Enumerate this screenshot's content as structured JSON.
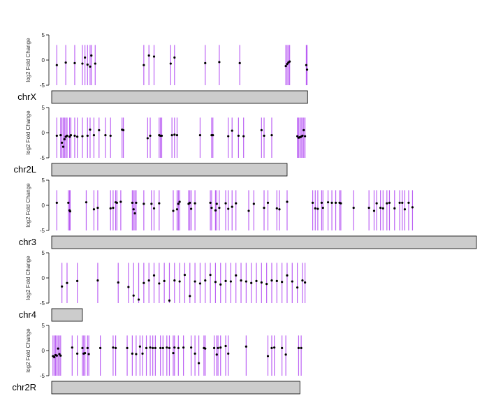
{
  "chart_data": {
    "type": "scatter",
    "ylabel": "log2 Fold Change",
    "ylim": [
      -5,
      5
    ],
    "yticks": [
      "5",
      "0",
      "-5"
    ],
    "line_color": "#a020f0",
    "point_color": "#000000",
    "bar_color": "#cccccc",
    "panels": [
      {
        "name": "chrX",
        "length": 1.0,
        "points": [
          [
            0.02,
            -1.0
          ],
          [
            0.055,
            -0.5
          ],
          [
            0.09,
            -0.6
          ],
          [
            0.12,
            -0.7
          ],
          [
            0.13,
            0.5
          ],
          [
            0.14,
            -0.9
          ],
          [
            0.15,
            -1.3
          ],
          [
            0.155,
            0.9
          ],
          [
            0.17,
            -0.7
          ],
          [
            0.36,
            -1.0
          ],
          [
            0.38,
            0.9
          ],
          [
            0.4,
            0.7
          ],
          [
            0.465,
            -0.7
          ],
          [
            0.48,
            0.5
          ],
          [
            0.6,
            -0.6
          ],
          [
            0.655,
            -0.4
          ],
          [
            0.735,
            -0.6
          ],
          [
            0.915,
            -1.2
          ],
          [
            0.92,
            -0.8
          ],
          [
            0.925,
            -0.5
          ],
          [
            0.93,
            -0.3
          ],
          [
            0.995,
            -1.0
          ],
          [
            0.998,
            -1.9
          ]
        ]
      },
      {
        "name": "chr2L",
        "length": 0.92,
        "points": [
          [
            0.02,
            -0.6
          ],
          [
            0.035,
            -0.5
          ],
          [
            0.04,
            -2.0
          ],
          [
            0.045,
            -2.8
          ],
          [
            0.05,
            -1.3
          ],
          [
            0.055,
            -0.8
          ],
          [
            0.06,
            -0.6
          ],
          [
            0.07,
            -0.8
          ],
          [
            0.075,
            -0.5
          ],
          [
            0.09,
            -0.6
          ],
          [
            0.1,
            -0.8
          ],
          [
            0.12,
            -0.7
          ],
          [
            0.14,
            -0.6
          ],
          [
            0.15,
            0.6
          ],
          [
            0.165,
            -0.5
          ],
          [
            0.185,
            0.5
          ],
          [
            0.21,
            -0.5
          ],
          [
            0.23,
            -0.6
          ],
          [
            0.275,
            0.6
          ],
          [
            0.28,
            0.5
          ],
          [
            0.375,
            -1.1
          ],
          [
            0.385,
            -0.6
          ],
          [
            0.42,
            -0.5
          ],
          [
            0.425,
            -0.6
          ],
          [
            0.43,
            -0.6
          ],
          [
            0.47,
            -0.5
          ],
          [
            0.48,
            -0.4
          ],
          [
            0.49,
            -0.5
          ],
          [
            0.58,
            -0.5
          ],
          [
            0.625,
            -0.5
          ],
          [
            0.63,
            -0.5
          ],
          [
            0.69,
            -0.7
          ],
          [
            0.705,
            0.4
          ],
          [
            0.73,
            -0.6
          ],
          [
            0.75,
            -0.7
          ],
          [
            0.82,
            0.5
          ],
          [
            0.83,
            -0.6
          ],
          [
            0.86,
            -0.5
          ],
          [
            0.96,
            -0.7
          ],
          [
            0.965,
            -1.0
          ],
          [
            0.97,
            -0.9
          ],
          [
            0.975,
            -0.8
          ],
          [
            0.98,
            -0.6
          ],
          [
            0.985,
            0.5
          ],
          [
            0.99,
            -0.7
          ]
        ]
      },
      {
        "name": "chr3",
        "length": 1.66,
        "points": [
          [
            0.02,
            0.5
          ],
          [
            0.065,
            0.5
          ],
          [
            0.07,
            -1.0
          ],
          [
            0.072,
            -1.2
          ],
          [
            0.135,
            0.6
          ],
          [
            0.165,
            -0.8
          ],
          [
            0.18,
            -0.5
          ],
          [
            0.23,
            -0.6
          ],
          [
            0.24,
            -0.5
          ],
          [
            0.25,
            0.6
          ],
          [
            0.255,
            0.5
          ],
          [
            0.27,
            0.7
          ],
          [
            0.315,
            0.5
          ],
          [
            0.32,
            -0.8
          ],
          [
            0.325,
            -1.6
          ],
          [
            0.33,
            0.5
          ],
          [
            0.36,
            0.3
          ],
          [
            0.39,
            0.3
          ],
          [
            0.4,
            -0.6
          ],
          [
            0.42,
            0.4
          ],
          [
            0.475,
            -1.1
          ],
          [
            0.49,
            -0.8
          ],
          [
            0.495,
            0.3
          ],
          [
            0.5,
            0.7
          ],
          [
            0.535,
            0.3
          ],
          [
            0.54,
            0.5
          ],
          [
            0.545,
            -0.7
          ],
          [
            0.56,
            0.4
          ],
          [
            0.62,
            0.5
          ],
          [
            0.625,
            -0.5
          ],
          [
            0.64,
            -1.0
          ],
          [
            0.645,
            0.3
          ],
          [
            0.655,
            -0.5
          ],
          [
            0.68,
            0.4
          ],
          [
            0.69,
            -0.7
          ],
          [
            0.705,
            -0.3
          ],
          [
            0.72,
            0.4
          ],
          [
            0.77,
            -1.1
          ],
          [
            0.79,
            0.3
          ],
          [
            0.83,
            -0.5
          ],
          [
            0.845,
            0.5
          ],
          [
            0.88,
            -0.6
          ],
          [
            0.89,
            -0.8
          ],
          [
            0.92,
            0.7
          ],
          [
            1.02,
            0.5
          ],
          [
            1.03,
            -0.6
          ],
          [
            1.04,
            -0.7
          ],
          [
            1.055,
            0.5
          ],
          [
            1.06,
            -0.5
          ],
          [
            1.08,
            0.6
          ],
          [
            1.095,
            0.5
          ],
          [
            1.11,
            0.5
          ],
          [
            1.125,
            0.5
          ],
          [
            1.13,
            0.4
          ],
          [
            1.18,
            -0.5
          ],
          [
            1.24,
            -0.5
          ],
          [
            1.26,
            -1.1
          ],
          [
            1.27,
            0.4
          ],
          [
            1.285,
            -0.5
          ],
          [
            1.295,
            -0.6
          ],
          [
            1.31,
            0.4
          ],
          [
            1.32,
            0.5
          ],
          [
            1.34,
            -0.6
          ],
          [
            1.36,
            0.5
          ],
          [
            1.37,
            0.5
          ],
          [
            1.38,
            -0.8
          ],
          [
            1.395,
            0.5
          ],
          [
            1.41,
            -0.4
          ]
        ]
      },
      {
        "name": "chr4",
        "length": 0.12,
        "points": [
          [
            0.04,
            -1.7
          ],
          [
            0.06,
            -1.0
          ],
          [
            0.1,
            -0.6
          ],
          [
            0.18,
            -0.5
          ],
          [
            0.26,
            -0.9
          ],
          [
            0.3,
            -1.8
          ],
          [
            0.32,
            -3.5
          ],
          [
            0.34,
            -4.3
          ],
          [
            0.36,
            -1.0
          ],
          [
            0.38,
            -0.5
          ],
          [
            0.4,
            0.5
          ],
          [
            0.42,
            -1.1
          ],
          [
            0.44,
            -0.6
          ],
          [
            0.46,
            -4.5
          ],
          [
            0.48,
            -0.5
          ],
          [
            0.5,
            -0.7
          ],
          [
            0.52,
            0.6
          ],
          [
            0.54,
            -3.6
          ],
          [
            0.56,
            -0.7
          ],
          [
            0.58,
            -1.1
          ],
          [
            0.6,
            -0.5
          ],
          [
            0.62,
            0.6
          ],
          [
            0.64,
            -0.8
          ],
          [
            0.66,
            -1.3
          ],
          [
            0.68,
            -0.6
          ],
          [
            0.7,
            -0.7
          ],
          [
            0.72,
            0.5
          ],
          [
            0.74,
            -0.5
          ],
          [
            0.76,
            -0.7
          ],
          [
            0.78,
            -1.0
          ],
          [
            0.8,
            -0.6
          ],
          [
            0.82,
            -0.9
          ],
          [
            0.84,
            -1.2
          ],
          [
            0.86,
            -0.5
          ],
          [
            0.88,
            -0.6
          ],
          [
            0.9,
            -0.8
          ],
          [
            0.92,
            0.5
          ],
          [
            0.94,
            -0.7
          ],
          [
            0.96,
            -1.9
          ],
          [
            0.98,
            -0.5
          ],
          [
            0.99,
            -0.9
          ]
        ]
      },
      {
        "name": "chr2R",
        "length": 0.97,
        "points": [
          [
            0.005,
            -1.1
          ],
          [
            0.01,
            -1.3
          ],
          [
            0.015,
            -0.9
          ],
          [
            0.02,
            -1.0
          ],
          [
            0.025,
            0.4
          ],
          [
            0.03,
            -0.7
          ],
          [
            0.035,
            -1.0
          ],
          [
            0.08,
            0.6
          ],
          [
            0.1,
            -0.6
          ],
          [
            0.12,
            0.5
          ],
          [
            0.125,
            -0.6
          ],
          [
            0.13,
            -0.5
          ],
          [
            0.14,
            0.5
          ],
          [
            0.145,
            -0.7
          ],
          [
            0.19,
            0.5
          ],
          [
            0.24,
            0.6
          ],
          [
            0.25,
            0.5
          ],
          [
            0.295,
            0.5
          ],
          [
            0.315,
            -0.6
          ],
          [
            0.33,
            -0.7
          ],
          [
            0.345,
            0.8
          ],
          [
            0.355,
            -0.6
          ],
          [
            0.37,
            0.5
          ],
          [
            0.385,
            0.6
          ],
          [
            0.395,
            0.5
          ],
          [
            0.405,
            0.5
          ],
          [
            0.425,
            0.5
          ],
          [
            0.435,
            0.5
          ],
          [
            0.45,
            0.6
          ],
          [
            0.46,
            0.5
          ],
          [
            0.475,
            -0.5
          ],
          [
            0.48,
            0.6
          ],
          [
            0.495,
            0.5
          ],
          [
            0.515,
            0.6
          ],
          [
            0.545,
            0.6
          ],
          [
            0.56,
            -0.6
          ],
          [
            0.575,
            -2.5
          ],
          [
            0.595,
            0.5
          ],
          [
            0.6,
            0.4
          ],
          [
            0.635,
            0.5
          ],
          [
            0.645,
            -0.8
          ],
          [
            0.65,
            0.5
          ],
          [
            0.66,
            0.6
          ],
          [
            0.68,
            0.9
          ],
          [
            0.69,
            -0.6
          ],
          [
            0.76,
            0.8
          ],
          [
            0.845,
            -1.1
          ],
          [
            0.86,
            0.5
          ],
          [
            0.87,
            0.6
          ],
          [
            0.9,
            0.5
          ],
          [
            0.915,
            -0.8
          ],
          [
            0.965,
            0.5
          ],
          [
            0.975,
            0.5
          ]
        ]
      }
    ]
  }
}
